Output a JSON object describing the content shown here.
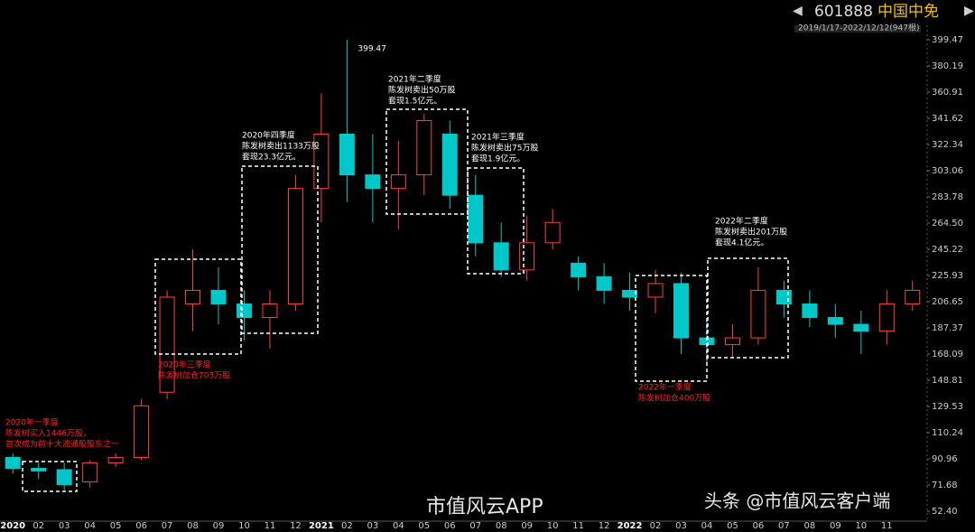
{
  "header": {
    "code": "601888",
    "name": "中国中免",
    "range": "2019/1/17-2022/12/12(947根)"
  },
  "watermark": [
    "市值风云APP",
    "头条 @市值风云客户端"
  ],
  "chart_data": {
    "type": "candlestick",
    "categories": [
      "2020",
      "02",
      "03",
      "04",
      "05",
      "06",
      "07",
      "08",
      "09",
      "10",
      "11",
      "12",
      "2021",
      "02",
      "03",
      "04",
      "05",
      "06",
      "07",
      "08",
      "09",
      "10",
      "11",
      "12",
      "2022",
      "02",
      "03",
      "04",
      "05",
      "06",
      "07",
      "08",
      "09",
      "10",
      "11",
      null
    ],
    "open": [
      92,
      84,
      83,
      74,
      88,
      92,
      140,
      205,
      215,
      205,
      195,
      205,
      290,
      330,
      300,
      290,
      300,
      330,
      285,
      250,
      230,
      250,
      235,
      225,
      215,
      210,
      220,
      180,
      175,
      180,
      215,
      205,
      195,
      190,
      185,
      205
    ],
    "high": [
      95,
      88,
      88,
      90,
      95,
      135,
      215,
      245,
      232,
      215,
      215,
      300,
      360,
      399.47,
      330,
      325,
      345,
      340,
      300,
      265,
      270,
      275,
      240,
      235,
      228,
      230,
      228,
      192,
      190,
      232,
      222,
      215,
      205,
      200,
      215,
      222
    ],
    "low": [
      80,
      76,
      68,
      70,
      85,
      90,
      135,
      185,
      190,
      178,
      172,
      200,
      265,
      280,
      265,
      260,
      285,
      275,
      240,
      225,
      222,
      245,
      215,
      205,
      200,
      198,
      168,
      160,
      165,
      175,
      195,
      188,
      180,
      168,
      175,
      200
    ],
    "close": [
      84,
      82,
      72,
      88,
      92,
      130,
      210,
      215,
      205,
      195,
      205,
      290,
      330,
      300,
      290,
      300,
      340,
      285,
      250,
      230,
      250,
      265,
      225,
      215,
      210,
      220,
      180,
      175,
      180,
      215,
      205,
      195,
      190,
      185,
      205,
      215
    ],
    "up_color": "#ff4040",
    "down_color": "#00c8c8",
    "ylim": [
      52.4,
      399.47
    ],
    "yticks": [
      {
        "value": 52.4,
        "label": "52.40"
      },
      71.68,
      90.96,
      110.24,
      129.53,
      148.81,
      168.09,
      187.37,
      206.65,
      225.93,
      245.22,
      {
        "value": 264.5,
        "label": "264.50"
      },
      283.78,
      303.06,
      322.34,
      341.62,
      360.91,
      380.19,
      399.47
    ],
    "annotations": [
      {
        "lines": [
          "2020年一季度",
          "陈发树买入1446万股，",
          "首次成为前十大流通股股东之一"
        ],
        "color": "#ff2020"
      },
      {
        "lines": [
          "2020年三季度",
          "陈发树加仓703万股"
        ],
        "color": "#ff2020"
      },
      {
        "lines": [
          "2020年四季度",
          "陈发树卖出1133万股",
          "套现23.3亿元。"
        ],
        "color": "#ffffff"
      },
      {
        "lines": [
          "2021年二季度",
          "陈发树卖出50万股",
          "套现1.5亿元。"
        ],
        "color": "#ffffff"
      },
      {
        "lines": [
          "2021年三季度",
          "陈发树卖出75万股",
          "套现1.9亿元。"
        ],
        "color": "#ffffff"
      },
      {
        "lines": [
          "2022年一季度",
          "陈发树加仓400万股"
        ],
        "color": "#ff2020"
      },
      {
        "lines": [
          "2022年二季度",
          "陈发树卖出201万股",
          "套现4.1亿元。"
        ],
        "color": "#ffffff"
      }
    ]
  }
}
